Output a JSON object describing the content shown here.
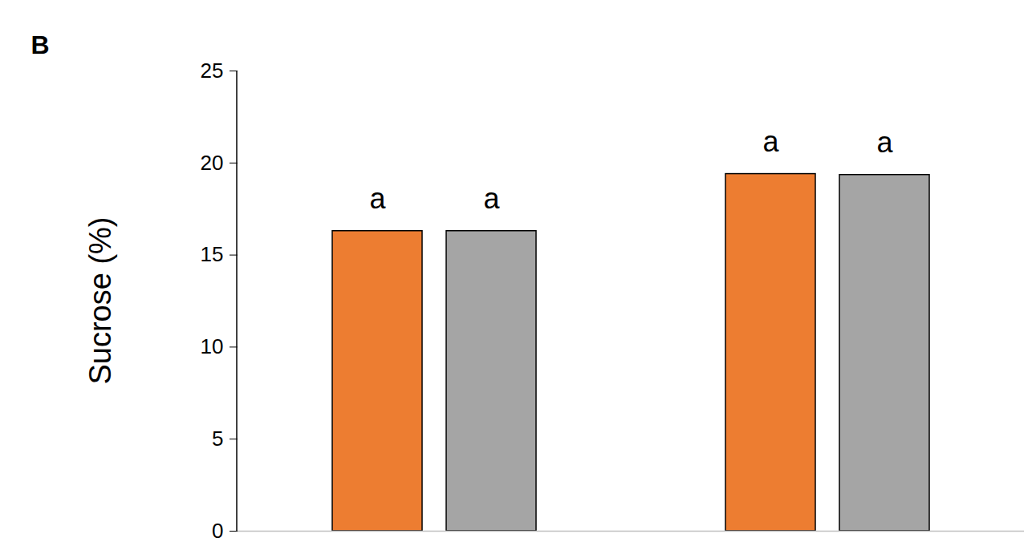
{
  "chart_data": {
    "type": "bar",
    "title": "B",
    "ylabel": "Sucrose (%)",
    "categories": [
      null,
      null
    ],
    "series": [
      {
        "color": "#ed7d31",
        "values": [
          16.3,
          19.4
        ],
        "letters": [
          "a",
          "a"
        ]
      },
      {
        "color": "#a5a5a5",
        "values": [
          16.3,
          19.35
        ],
        "letters": [
          "a",
          "a"
        ]
      }
    ],
    "ylim": [
      0,
      25
    ],
    "yticks": [
      0,
      5,
      10,
      15,
      20,
      25
    ],
    "grid": false
  }
}
